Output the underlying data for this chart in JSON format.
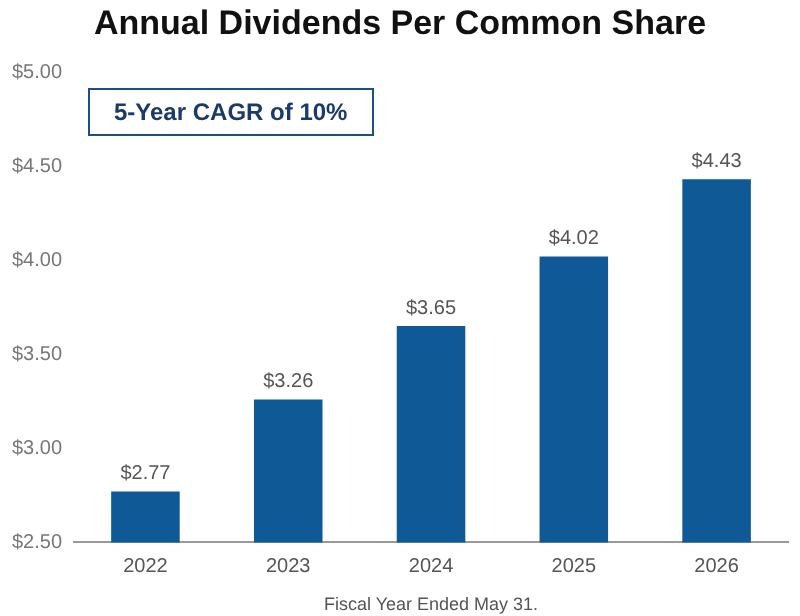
{
  "chart_data": {
    "type": "bar",
    "title": "Annual Dividends Per Common Share",
    "xlabel": "Fiscal Year Ended May 31.",
    "annotations": [
      "5-Year CAGR of 10%"
    ],
    "categories": [
      "2022",
      "2023",
      "2024",
      "2025",
      "2026"
    ],
    "values": [
      2.77,
      3.26,
      3.65,
      4.02,
      4.43
    ],
    "value_labels": [
      "$2.77",
      "$3.26",
      "$3.65",
      "$4.02",
      "$4.43"
    ],
    "color": "#0f5a96",
    "ylim": [
      2.5,
      5
    ],
    "yticks": [
      {
        "value": 2.5,
        "label": "$2.50"
      },
      {
        "value": 3,
        "label": "$3.00"
      },
      {
        "value": 3.5,
        "label": "$3.50"
      },
      {
        "value": 4,
        "label": "$4.00"
      },
      {
        "value": 4.5,
        "label": "$4.50"
      },
      {
        "value": 5,
        "label": "$5.00"
      }
    ],
    "grid": false
  }
}
